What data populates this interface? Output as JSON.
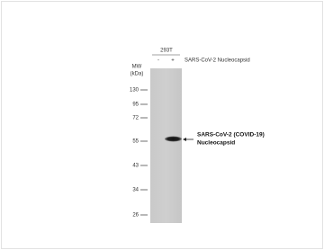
{
  "blot": {
    "cell_line": "293T",
    "lanes": [
      "-",
      "+"
    ],
    "treatment": "SARS-CoV-2 Nucleocapsid",
    "mw_title": "MW",
    "mw_unit": "(kDa)",
    "markers": [
      "130",
      "95",
      "72",
      "55",
      "43",
      "34",
      "26"
    ],
    "band_label": [
      "SARS-CoV-2 (COVID-19)",
      "Nucleocapsid"
    ]
  }
}
